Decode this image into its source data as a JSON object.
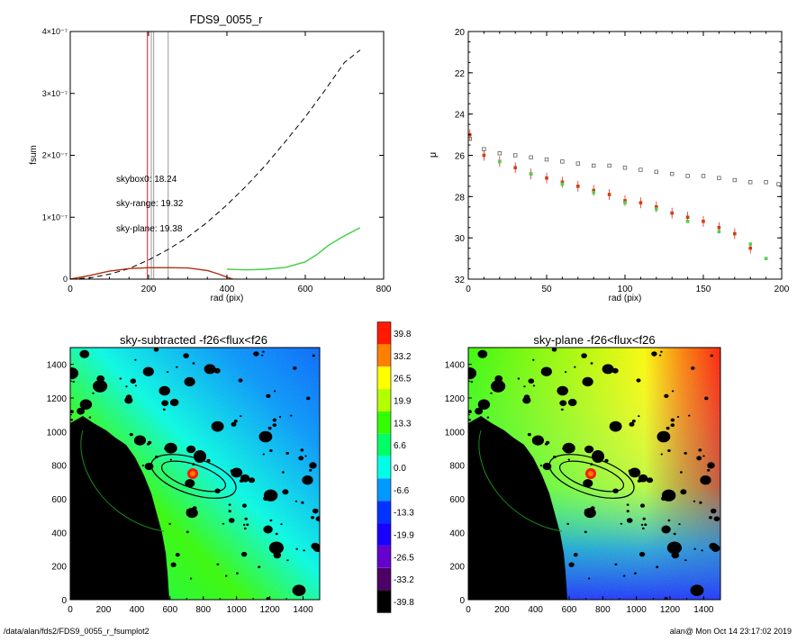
{
  "chart_data": [
    {
      "type": "line",
      "title": "FDS9_0055_r",
      "xlabel": "rad (pix)",
      "ylabel": "fsum",
      "xlim": [
        0,
        800
      ],
      "ylim": [
        0,
        4e-07
      ],
      "x_ticks": [
        "0",
        "200",
        "400",
        "600",
        "800"
      ],
      "y_ticks": [
        "0",
        "1×10⁻⁷",
        "2×10⁻⁷",
        "3×10⁻⁷",
        "4×10⁻⁷"
      ],
      "vertical_lines": [
        {
          "x": 197,
          "color": "#d62020"
        },
        {
          "x": 207,
          "color": "#999999"
        },
        {
          "x": 213,
          "color": "#999999"
        },
        {
          "x": 250,
          "color": "#999999"
        }
      ],
      "series": [
        {
          "style": "dashed",
          "color": "#000000",
          "x": [
            0,
            50,
            100,
            150,
            200,
            250,
            300,
            350,
            400,
            450,
            500,
            550,
            600,
            650,
            700,
            740
          ],
          "y": [
            0,
            2e-09,
            8e-09,
            1.7e-08,
            3.1e-08,
            4.8e-08,
            6.8e-08,
            9.2e-08,
            1.2e-07,
            1.51e-07,
            1.85e-07,
            2.23e-07,
            2.62e-07,
            3.05e-07,
            3.5e-07,
            3.7e-07
          ]
        },
        {
          "style": "solid",
          "color": "#b03010",
          "x": [
            0,
            50,
            100,
            150,
            200,
            250,
            300,
            350,
            380,
            400,
            415
          ],
          "y": [
            0,
            6e-09,
            1.3e-08,
            1.7e-08,
            1.85e-08,
            1.85e-08,
            1.8e-08,
            1.4e-08,
            8e-09,
            3e-09,
            0
          ]
        },
        {
          "style": "solid",
          "color": "#40d040",
          "x": [
            400,
            450,
            500,
            550,
            600,
            630,
            660,
            700,
            740
          ],
          "y": [
            1.6e-08,
            1.5e-08,
            1.6e-08,
            1.9e-08,
            2.8e-08,
            4e-08,
            5.5e-08,
            7e-08,
            8.3e-08
          ]
        }
      ],
      "annotations": [
        {
          "text": "skybox0: 18.24",
          "color": "#000000"
        },
        {
          "text": "sky-range: 19.32",
          "color": "#e02020"
        },
        {
          "text": "sky-plane: 19.38",
          "color": "#40e040"
        }
      ]
    },
    {
      "type": "scatter",
      "title": "",
      "xlabel": "rad (pix)",
      "ylabel": "μ",
      "xlim": [
        0,
        200
      ],
      "ylim": [
        32,
        20
      ],
      "x_ticks": [
        "0",
        "50",
        "100",
        "150",
        "200"
      ],
      "y_ticks": [
        "20",
        "22",
        "24",
        "26",
        "28",
        "30",
        "32"
      ],
      "series": [
        {
          "marker": "open-square",
          "color": "#606060",
          "x": [
            1,
            10,
            20,
            30,
            40,
            50,
            60,
            70,
            80,
            90,
            100,
            110,
            120,
            130,
            140,
            150,
            160,
            170,
            180,
            190,
            198
          ],
          "y": [
            25.2,
            25.7,
            25.9,
            26.0,
            26.1,
            26.2,
            26.3,
            26.4,
            26.5,
            26.5,
            26.6,
            26.7,
            26.8,
            26.9,
            27.0,
            27.0,
            27.1,
            27.2,
            27.3,
            27.3,
            27.4
          ]
        },
        {
          "marker": "filled-square",
          "color": "#d04010",
          "x": [
            1,
            10,
            20,
            30,
            40,
            50,
            60,
            70,
            80,
            90,
            100,
            110,
            120,
            130,
            140,
            150,
            160,
            170,
            180
          ],
          "y": [
            25.0,
            26.0,
            26.3,
            26.6,
            26.9,
            27.1,
            27.3,
            27.5,
            27.7,
            27.9,
            28.2,
            28.3,
            28.5,
            28.8,
            29.0,
            29.2,
            29.5,
            29.8,
            30.5
          ]
        },
        {
          "marker": "filled-square",
          "color": "#50d050",
          "x": [
            20,
            40,
            60,
            80,
            100,
            120,
            140,
            160,
            180,
            190
          ],
          "y": [
            26.3,
            26.9,
            27.4,
            27.8,
            28.3,
            28.6,
            29.2,
            29.7,
            30.3,
            31.0
          ]
        }
      ]
    },
    {
      "type": "heatmap",
      "title": "sky-subtracted -f26<flux<f26",
      "xlim": [
        0,
        1500
      ],
      "ylim": [
        0,
        1500
      ],
      "x_ticks": [
        "0",
        "200",
        "400",
        "600",
        "800",
        "1000",
        "1200",
        "1400"
      ],
      "y_ticks": [
        "0",
        "200",
        "400",
        "600",
        "800",
        "1000",
        "1200",
        "1400"
      ]
    },
    {
      "type": "heatmap",
      "title": "sky-plane -f26<flux<f26",
      "xlim": [
        0,
        1500
      ],
      "ylim": [
        0,
        1500
      ],
      "x_ticks": [
        "0",
        "200",
        "400",
        "600",
        "800",
        "1000",
        "1200",
        "1400"
      ],
      "y_ticks": [
        "0",
        "200",
        "400",
        "600",
        "800",
        "1000",
        "1200",
        "1400"
      ]
    }
  ],
  "colorbar": {
    "labels": [
      "39.8",
      "33.2",
      "26.5",
      "19.9",
      "13.3",
      "6.6",
      "0.0",
      "-6.6",
      "-13.3",
      "-19.9",
      "-26.5",
      "-33.2",
      "-39.8"
    ],
    "colors": [
      "#ff1a00",
      "#ff8000",
      "#ffff00",
      "#b4ff00",
      "#33ff00",
      "#00ff66",
      "#00ffe6",
      "#0099ff",
      "#0033ff",
      "#1a00ff",
      "#6600cc",
      "#4d0066",
      "#000000"
    ]
  },
  "footer": {
    "path": "/data/alan/fds2/FDS9_0055_r_fsumplot2",
    "user_date": "alan@  Mon Oct 14 23:17:02 2019"
  }
}
